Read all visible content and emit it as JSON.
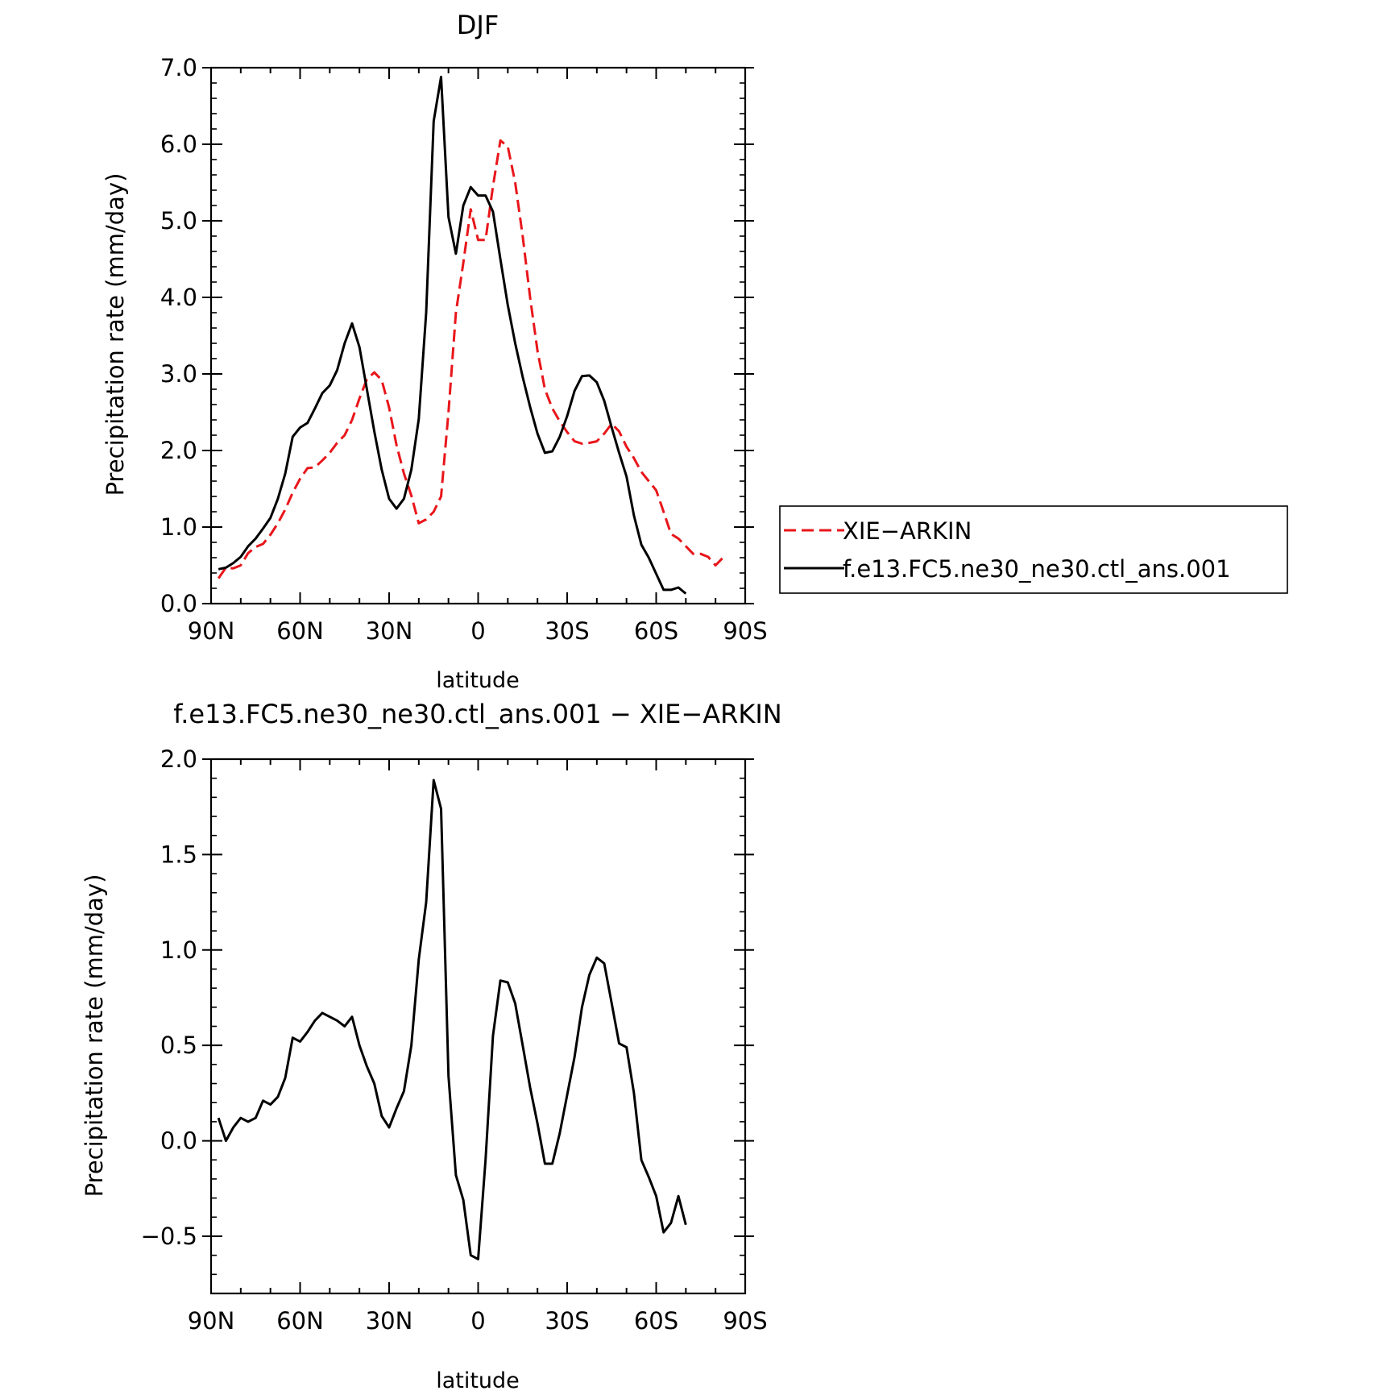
{
  "chart_data": [
    {
      "type": "line",
      "title": "DJF",
      "xlabel": "latitude",
      "ylabel": "Precipitation rate (mm/day)",
      "xlim": [
        90,
        -90
      ],
      "ylim": [
        0,
        7
      ],
      "grid": false,
      "x_ticks": [
        90,
        60,
        30,
        0,
        -30,
        -60,
        -90
      ],
      "x_tick_labels": [
        "90N",
        "60N",
        "30N",
        "0",
        "30S",
        "60S",
        "90S"
      ],
      "y_ticks": [
        0,
        1,
        2,
        3,
        4,
        5,
        6,
        7
      ],
      "y_tick_labels": [
        "0.0",
        "1.0",
        "2.0",
        "3.0",
        "4.0",
        "5.0",
        "6.0",
        "7.0"
      ],
      "legend_position": "right",
      "series": [
        {
          "name": "XIE−ARKIN",
          "color": "#e8161b",
          "dash": "dashed",
          "points": [
            [
              87.5,
              0.33
            ],
            [
              85,
              0.47
            ],
            [
              82.5,
              0.46
            ],
            [
              80,
              0.5
            ],
            [
              77.5,
              0.66
            ],
            [
              75,
              0.74
            ],
            [
              72.5,
              0.78
            ],
            [
              70,
              0.9
            ],
            [
              67.5,
              1.05
            ],
            [
              65,
              1.23
            ],
            [
              62.5,
              1.45
            ],
            [
              60,
              1.63
            ],
            [
              57.5,
              1.77
            ],
            [
              55,
              1.78
            ],
            [
              52.5,
              1.87
            ],
            [
              50,
              1.97
            ],
            [
              47.5,
              2.1
            ],
            [
              45,
              2.2
            ],
            [
              42.5,
              2.4
            ],
            [
              40,
              2.68
            ],
            [
              37.5,
              2.93
            ],
            [
              35,
              3.02
            ],
            [
              32.5,
              2.92
            ],
            [
              30,
              2.56
            ],
            [
              27.5,
              2.07
            ],
            [
              25,
              1.7
            ],
            [
              22.5,
              1.41
            ],
            [
              20,
              1.05
            ],
            [
              17.5,
              1.1
            ],
            [
              15,
              1.2
            ],
            [
              12.5,
              1.4
            ],
            [
              10,
              2.5
            ],
            [
              7.5,
              3.8
            ],
            [
              5,
              4.45
            ],
            [
              2.5,
              5.15
            ],
            [
              0,
              4.75
            ],
            [
              -2.5,
              4.75
            ],
            [
              -5,
              5.45
            ],
            [
              -7.5,
              6.05
            ],
            [
              -10,
              5.97
            ],
            [
              -12.5,
              5.5
            ],
            [
              -15,
              4.8
            ],
            [
              -17.5,
              4.0
            ],
            [
              -20,
              3.3
            ],
            [
              -22.5,
              2.8
            ],
            [
              -25,
              2.55
            ],
            [
              -27.5,
              2.38
            ],
            [
              -30,
              2.24
            ],
            [
              -32.5,
              2.12
            ],
            [
              -35,
              2.09
            ],
            [
              -37.5,
              2.1
            ],
            [
              -40,
              2.12
            ],
            [
              -42.5,
              2.22
            ],
            [
              -45,
              2.35
            ],
            [
              -47.5,
              2.25
            ],
            [
              -50,
              2.05
            ],
            [
              -52.5,
              1.9
            ],
            [
              -55,
              1.72
            ],
            [
              -57.5,
              1.6
            ],
            [
              -60,
              1.48
            ],
            [
              -62.5,
              1.2
            ],
            [
              -65,
              0.91
            ],
            [
              -67.5,
              0.85
            ],
            [
              -70,
              0.75
            ],
            [
              -72.5,
              0.65
            ],
            [
              -75,
              0.65
            ],
            [
              -77.5,
              0.61
            ],
            [
              -80,
              0.5
            ],
            [
              -82.5,
              0.6
            ]
          ]
        },
        {
          "name": "f.e13.FC5.ne30_ne30.ctl_ans.001",
          "color": "#000000",
          "dash": "solid",
          "points": [
            [
              87.5,
              0.45
            ],
            [
              85,
              0.47
            ],
            [
              82.5,
              0.53
            ],
            [
              80,
              0.61
            ],
            [
              77.5,
              0.75
            ],
            [
              75,
              0.85
            ],
            [
              72.5,
              0.98
            ],
            [
              70,
              1.12
            ],
            [
              67.5,
              1.37
            ],
            [
              65,
              1.7
            ],
            [
              62.5,
              2.18
            ],
            [
              60,
              2.3
            ],
            [
              57.5,
              2.36
            ],
            [
              55,
              2.55
            ],
            [
              52.5,
              2.75
            ],
            [
              50,
              2.85
            ],
            [
              47.5,
              3.05
            ],
            [
              45,
              3.4
            ],
            [
              42.5,
              3.66
            ],
            [
              40,
              3.35
            ],
            [
              37.5,
              2.8
            ],
            [
              35,
              2.25
            ],
            [
              32.5,
              1.75
            ],
            [
              30,
              1.37
            ],
            [
              27.5,
              1.24
            ],
            [
              25,
              1.37
            ],
            [
              22.5,
              1.75
            ],
            [
              20,
              2.41
            ],
            [
              17.5,
              3.8
            ],
            [
              15,
              6.3
            ],
            [
              12.5,
              6.88
            ],
            [
              10,
              5.05
            ],
            [
              7.5,
              4.57
            ],
            [
              5,
              5.2
            ],
            [
              2.5,
              5.44
            ],
            [
              0,
              5.33
            ],
            [
              -2.5,
              5.33
            ],
            [
              -5,
              5.12
            ],
            [
              -7.5,
              4.5
            ],
            [
              -10,
              3.9
            ],
            [
              -12.5,
              3.4
            ],
            [
              -15,
              2.96
            ],
            [
              -17.5,
              2.57
            ],
            [
              -20,
              2.22
            ],
            [
              -22.5,
              1.97
            ],
            [
              -25,
              1.99
            ],
            [
              -27.5,
              2.18
            ],
            [
              -30,
              2.45
            ],
            [
              -32.5,
              2.78
            ],
            [
              -35,
              2.97
            ],
            [
              -37.5,
              2.98
            ],
            [
              -40,
              2.89
            ],
            [
              -42.5,
              2.65
            ],
            [
              -45,
              2.3
            ],
            [
              -47.5,
              1.97
            ],
            [
              -50,
              1.66
            ],
            [
              -52.5,
              1.15
            ],
            [
              -55,
              0.77
            ],
            [
              -57.5,
              0.6
            ],
            [
              -60,
              0.39
            ],
            [
              -62.5,
              0.18
            ],
            [
              -65,
              0.18
            ],
            [
              -67.5,
              0.21
            ],
            [
              -70,
              0.13
            ]
          ]
        }
      ]
    },
    {
      "type": "line",
      "title": "f.e13.FC5.ne30_ne30.ctl_ans.001 − XIE−ARKIN",
      "xlabel": "latitude",
      "ylabel": "Precipitation rate (mm/day)",
      "xlim": [
        90,
        -90
      ],
      "ylim": [
        -0.8,
        2.0
      ],
      "grid": false,
      "x_ticks": [
        90,
        60,
        30,
        0,
        -30,
        -60,
        -90
      ],
      "x_tick_labels": [
        "90N",
        "60N",
        "30N",
        "0",
        "30S",
        "60S",
        "90S"
      ],
      "y_ticks": [
        -0.5,
        0,
        0.5,
        1.0,
        1.5,
        2.0
      ],
      "y_tick_labels": [
        "−0.5",
        "0.0",
        "0.5",
        "1.0",
        "1.5",
        "2.0"
      ],
      "series": [
        {
          "color": "#000000",
          "dash": "solid",
          "points": [
            [
              87.5,
              0.12
            ],
            [
              85,
              0.0
            ],
            [
              82.5,
              0.07
            ],
            [
              80,
              0.12
            ],
            [
              77.5,
              0.1
            ],
            [
              75,
              0.12
            ],
            [
              72.5,
              0.21
            ],
            [
              70,
              0.19
            ],
            [
              67.5,
              0.23
            ],
            [
              65,
              0.33
            ],
            [
              62.5,
              0.54
            ],
            [
              60,
              0.52
            ],
            [
              57.5,
              0.57
            ],
            [
              55,
              0.63
            ],
            [
              52.5,
              0.67
            ],
            [
              50,
              0.65
            ],
            [
              47.5,
              0.63
            ],
            [
              45,
              0.6
            ],
            [
              42.5,
              0.65
            ],
            [
              40,
              0.5
            ],
            [
              37.5,
              0.39
            ],
            [
              35,
              0.3
            ],
            [
              32.5,
              0.13
            ],
            [
              30,
              0.07
            ],
            [
              27.5,
              0.17
            ],
            [
              25,
              0.26
            ],
            [
              22.5,
              0.5
            ],
            [
              20,
              0.95
            ],
            [
              17.5,
              1.25
            ],
            [
              15,
              1.89
            ],
            [
              12.5,
              1.74
            ],
            [
              10,
              0.34
            ],
            [
              7.5,
              -0.18
            ],
            [
              5,
              -0.31
            ],
            [
              2.5,
              -0.6
            ],
            [
              0,
              -0.62
            ],
            [
              -2.5,
              -0.1
            ],
            [
              -5,
              0.55
            ],
            [
              -7.5,
              0.84
            ],
            [
              -10,
              0.83
            ],
            [
              -12.5,
              0.72
            ],
            [
              -15,
              0.5
            ],
            [
              -17.5,
              0.28
            ],
            [
              -20,
              0.09
            ],
            [
              -22.5,
              -0.12
            ],
            [
              -25,
              -0.12
            ],
            [
              -27.5,
              0.04
            ],
            [
              -30,
              0.24
            ],
            [
              -32.5,
              0.44
            ],
            [
              -35,
              0.7
            ],
            [
              -37.5,
              0.87
            ],
            [
              -40,
              0.96
            ],
            [
              -42.5,
              0.93
            ],
            [
              -45,
              0.72
            ],
            [
              -47.5,
              0.51
            ],
            [
              -50,
              0.49
            ],
            [
              -52.5,
              0.25
            ],
            [
              -55,
              -0.1
            ],
            [
              -57.5,
              -0.19
            ],
            [
              -60,
              -0.29
            ],
            [
              -62.5,
              -0.48
            ],
            [
              -65,
              -0.43
            ],
            [
              -67.5,
              -0.29
            ],
            [
              -70,
              -0.44
            ]
          ]
        }
      ]
    }
  ]
}
